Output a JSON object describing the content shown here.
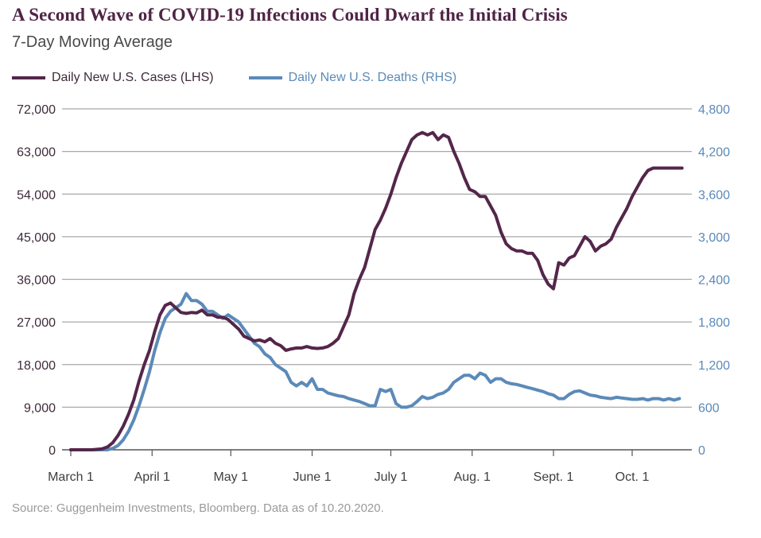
{
  "chart_data": {
    "type": "line",
    "title": "A Second Wave of COVID-19 Infections Could Dwarf the Initial Crisis",
    "subtitle": "7-Day Moving Average",
    "xlabel": "",
    "ylabel_left": "",
    "ylabel_right": "",
    "x_unit": "days since March 1, 2020",
    "xlim": [
      0,
      233
    ],
    "ylim_left": [
      0,
      72000
    ],
    "ylim_right": [
      0,
      4800
    ],
    "grid": true,
    "legend_position": "top-left",
    "x_ticks": [
      {
        "day": 0,
        "label": "March 1"
      },
      {
        "day": 31,
        "label": "April 1"
      },
      {
        "day": 61,
        "label": "May 1"
      },
      {
        "day": 92,
        "label": "June 1"
      },
      {
        "day": 122,
        "label": "July 1"
      },
      {
        "day": 153,
        "label": "Aug. 1"
      },
      {
        "day": 184,
        "label": "Sept. 1"
      },
      {
        "day": 214,
        "label": "Oct. 1"
      }
    ],
    "y_ticks_left": [
      "0",
      "9,000",
      "18,000",
      "27,000",
      "36,000",
      "45,000",
      "54,000",
      "63,000",
      "72,000"
    ],
    "y_ticks_left_values": [
      0,
      9000,
      18000,
      27000,
      36000,
      45000,
      54000,
      63000,
      72000
    ],
    "y_ticks_right": [
      "0",
      "600",
      "1,200",
      "1,800",
      "2,400",
      "3,000",
      "3,600",
      "4,200",
      "4,800"
    ],
    "y_ticks_right_values": [
      0,
      600,
      1200,
      1800,
      2400,
      3000,
      3600,
      4200,
      4800
    ],
    "series": [
      {
        "name": "Daily New U.S. Cases (LHS)",
        "axis": "left",
        "color": "#54264a",
        "x": [
          0,
          8,
          12,
          14,
          16,
          18,
          20,
          22,
          24,
          26,
          28,
          30,
          32,
          34,
          36,
          38,
          40,
          42,
          44,
          46,
          48,
          50,
          52,
          54,
          56,
          58,
          60,
          62,
          64,
          66,
          68,
          70,
          72,
          74,
          76,
          78,
          80,
          82,
          84,
          86,
          88,
          90,
          92,
          94,
          96,
          98,
          100,
          102,
          104,
          106,
          108,
          110,
          112,
          114,
          116,
          118,
          120,
          122,
          124,
          126,
          128,
          130,
          132,
          134,
          136,
          138,
          140,
          142,
          144,
          146,
          148,
          150,
          152,
          154,
          156,
          158,
          160,
          162,
          164,
          166,
          168,
          170,
          172,
          174,
          176,
          178,
          180,
          182,
          184,
          186,
          188,
          190,
          192,
          194,
          196,
          198,
          200,
          202,
          204,
          206,
          208,
          210,
          212,
          214,
          216,
          218,
          220,
          222,
          224,
          226,
          228,
          230,
          232,
          233
        ],
        "values": [
          0,
          0,
          200,
          600,
          1500,
          3000,
          5000,
          7500,
          10500,
          14500,
          18000,
          21000,
          25000,
          28500,
          30500,
          31000,
          30000,
          29000,
          28800,
          29000,
          28900,
          29500,
          28500,
          28500,
          28000,
          28000,
          27500,
          26500,
          25500,
          24000,
          23500,
          23000,
          23200,
          22800,
          23500,
          22500,
          22000,
          21000,
          21300,
          21500,
          21500,
          21800,
          21500,
          21400,
          21500,
          21800,
          22500,
          23500,
          26000,
          28500,
          33000,
          36000,
          38500,
          42500,
          46500,
          48500,
          51000,
          54000,
          57500,
          60500,
          63000,
          65500,
          66500,
          67000,
          66500,
          67000,
          65500,
          66500,
          66000,
          63000,
          60500,
          57500,
          55000,
          54500,
          53500,
          53500,
          51500,
          49500,
          46000,
          43500,
          42500,
          42000,
          42000,
          41500,
          41500,
          40000,
          37000,
          35000,
          34000,
          39500,
          39000,
          40500,
          41000,
          43000,
          45000,
          44000,
          42000,
          43000,
          43500,
          44500,
          47000,
          49000,
          51000,
          53500,
          55500,
          57500,
          59000,
          59500,
          59500,
          59500,
          59500,
          59500,
          59500,
          59500
        ]
      },
      {
        "name": "Daily New U.S. Deaths (RHS)",
        "axis": "right",
        "color": "#5b8ab8",
        "x": [
          0,
          14,
          16,
          18,
          20,
          22,
          24,
          26,
          28,
          30,
          32,
          34,
          36,
          38,
          40,
          42,
          44,
          46,
          48,
          50,
          52,
          54,
          56,
          58,
          60,
          62,
          64,
          66,
          68,
          70,
          72,
          74,
          76,
          78,
          80,
          82,
          84,
          86,
          88,
          90,
          92,
          94,
          96,
          98,
          100,
          102,
          104,
          106,
          108,
          110,
          112,
          114,
          116,
          118,
          120,
          122,
          124,
          126,
          128,
          130,
          132,
          134,
          136,
          138,
          140,
          142,
          144,
          146,
          148,
          150,
          152,
          154,
          156,
          158,
          160,
          162,
          164,
          166,
          168,
          170,
          172,
          174,
          176,
          178,
          180,
          182,
          184,
          186,
          188,
          190,
          192,
          194,
          196,
          198,
          200,
          202,
          204,
          206,
          208,
          210,
          212,
          214,
          216,
          218,
          220,
          222,
          224,
          226,
          228,
          230,
          232
        ],
        "values": [
          0,
          0,
          20,
          60,
          140,
          260,
          420,
          620,
          850,
          1100,
          1400,
          1650,
          1850,
          1950,
          2000,
          2050,
          2200,
          2100,
          2100,
          2050,
          1950,
          1950,
          1900,
          1850,
          1900,
          1850,
          1800,
          1700,
          1600,
          1500,
          1450,
          1350,
          1300,
          1200,
          1150,
          1100,
          950,
          900,
          950,
          900,
          1000,
          850,
          850,
          800,
          780,
          760,
          750,
          720,
          700,
          680,
          650,
          620,
          620,
          850,
          820,
          850,
          650,
          600,
          600,
          620,
          680,
          750,
          720,
          740,
          780,
          800,
          850,
          950,
          1000,
          1050,
          1050,
          1000,
          1080,
          1050,
          950,
          1000,
          1000,
          950,
          930,
          920,
          900,
          880,
          860,
          840,
          820,
          790,
          770,
          720,
          720,
          780,
          820,
          830,
          800,
          770,
          760,
          740,
          730,
          720,
          740,
          730,
          720,
          710,
          710,
          720,
          700,
          720,
          720,
          700,
          720,
          700,
          720
        ]
      }
    ],
    "source": "Source: Guggenheim Investments, Bloomberg. Data as of 10.20.2020."
  },
  "legend": {
    "cases_label": "Daily New U.S. Cases (LHS)",
    "deaths_label": "Daily New U.S. Deaths (RHS)"
  }
}
